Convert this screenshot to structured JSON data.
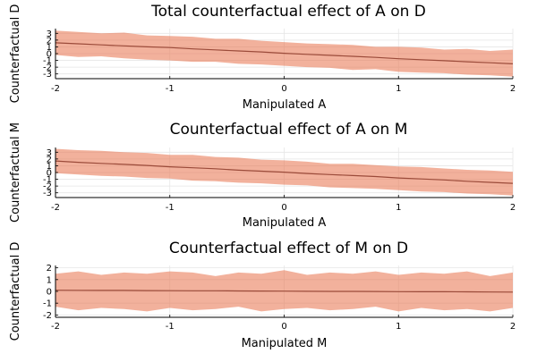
{
  "chart_data": [
    {
      "type": "area",
      "title": "Total counterfactual effect of A on D",
      "xlabel": "Manipulated A",
      "ylabel": "Counterfactual D",
      "xlim": [
        -2,
        2
      ],
      "ylim": [
        -3.7,
        3.7
      ],
      "xticks": [
        "-2",
        "-1",
        "0",
        "1",
        "2"
      ],
      "yticks": [
        "3",
        "2",
        "1",
        "0",
        "-1",
        "-2",
        "-3"
      ],
      "grid": true,
      "legend": "none",
      "band_color": "#e8714a",
      "band_opacity": 0.55,
      "line_color": "#9b4b3a",
      "x": [
        -2,
        -1.8,
        -1.6,
        -1.4,
        -1.2,
        -1,
        -0.8,
        -0.6,
        -0.4,
        -0.2,
        0,
        0.2,
        0.4,
        0.6,
        0.8,
        1,
        1.2,
        1.4,
        1.6,
        1.8,
        2
      ],
      "mean": [
        1.6,
        1.45,
        1.3,
        1.15,
        1.0,
        0.9,
        0.7,
        0.55,
        0.4,
        0.25,
        0.05,
        -0.1,
        -0.25,
        -0.4,
        -0.55,
        -0.75,
        -0.9,
        -1.05,
        -1.2,
        -1.35,
        -1.5
      ],
      "upper": [
        3.4,
        3.2,
        3.0,
        3.1,
        2.7,
        2.6,
        2.5,
        2.2,
        2.2,
        1.9,
        1.7,
        1.5,
        1.4,
        1.3,
        1.0,
        1.0,
        0.9,
        0.6,
        0.7,
        0.4,
        0.6
      ],
      "lower": [
        -0.2,
        -0.5,
        -0.4,
        -0.7,
        -0.9,
        -1.0,
        -1.2,
        -1.2,
        -1.5,
        -1.6,
        -1.8,
        -2.0,
        -2.1,
        -2.4,
        -2.3,
        -2.7,
        -2.8,
        -2.9,
        -3.1,
        -3.2,
        -3.4
      ]
    },
    {
      "type": "area",
      "title": "Counterfactual effect of A on M",
      "xlabel": "Manipulated A",
      "ylabel": "Counterfactual M",
      "xlim": [
        -2,
        2
      ],
      "ylim": [
        -3.7,
        3.7
      ],
      "xticks": [
        "-2",
        "-1",
        "0",
        "1",
        "2"
      ],
      "yticks": [
        "3",
        "2",
        "1",
        "0",
        "-1",
        "-2",
        "-3"
      ],
      "grid": true,
      "legend": "none",
      "band_color": "#e8714a",
      "band_opacity": 0.55,
      "line_color": "#9b4b3a",
      "x": [
        -2,
        -1.8,
        -1.6,
        -1.4,
        -1.2,
        -1,
        -0.8,
        -0.6,
        -0.4,
        -0.2,
        0,
        0.2,
        0.4,
        0.6,
        0.8,
        1,
        1.2,
        1.4,
        1.6,
        1.8,
        2
      ],
      "mean": [
        1.7,
        1.5,
        1.35,
        1.2,
        1.05,
        0.85,
        0.7,
        0.55,
        0.35,
        0.2,
        0.05,
        -0.15,
        -0.3,
        -0.45,
        -0.6,
        -0.8,
        -0.95,
        -1.1,
        -1.3,
        -1.45,
        -1.6
      ],
      "upper": [
        3.5,
        3.3,
        3.2,
        3.0,
        2.9,
        2.6,
        2.6,
        2.3,
        2.2,
        1.9,
        1.8,
        1.6,
        1.3,
        1.3,
        1.1,
        0.9,
        0.8,
        0.6,
        0.4,
        0.3,
        0.1
      ],
      "lower": [
        -0.1,
        -0.3,
        -0.5,
        -0.6,
        -0.8,
        -0.9,
        -1.2,
        -1.3,
        -1.5,
        -1.6,
        -1.8,
        -1.9,
        -2.2,
        -2.3,
        -2.4,
        -2.6,
        -2.8,
        -2.9,
        -3.1,
        -3.2,
        -3.4
      ]
    },
    {
      "type": "area",
      "title": "Counterfactual effect of M on D",
      "xlabel": "Manipulated M",
      "ylabel": "Counterfactual D",
      "xlim": [
        -2,
        2
      ],
      "ylim": [
        -2.2,
        2.2
      ],
      "xticks": [
        "-2",
        "-1",
        "0",
        "1",
        "2"
      ],
      "yticks": [
        "2",
        "1",
        "0",
        "-1",
        "-2"
      ],
      "grid": true,
      "legend": "none",
      "band_color": "#e8714a",
      "band_opacity": 0.55,
      "line_color": "#9b4b3a",
      "x": [
        -2,
        -1.8,
        -1.6,
        -1.4,
        -1.2,
        -1,
        -0.8,
        -0.6,
        -0.4,
        -0.2,
        0,
        0.2,
        0.4,
        0.6,
        0.8,
        1,
        1.2,
        1.4,
        1.6,
        1.8,
        2
      ],
      "mean": [
        0.1,
        0.09,
        0.08,
        0.08,
        0.07,
        0.06,
        0.05,
        0.05,
        0.04,
        0.03,
        0.02,
        0.01,
        0.0,
        0.0,
        -0.01,
        -0.02,
        -0.03,
        -0.03,
        -0.04,
        -0.05,
        -0.06
      ],
      "upper": [
        1.5,
        1.7,
        1.4,
        1.6,
        1.5,
        1.7,
        1.6,
        1.3,
        1.6,
        1.5,
        1.8,
        1.4,
        1.6,
        1.5,
        1.7,
        1.4,
        1.6,
        1.5,
        1.7,
        1.3,
        1.6
      ],
      "lower": [
        -1.3,
        -1.6,
        -1.4,
        -1.5,
        -1.7,
        -1.4,
        -1.6,
        -1.5,
        -1.3,
        -1.7,
        -1.5,
        -1.4,
        -1.6,
        -1.5,
        -1.3,
        -1.7,
        -1.4,
        -1.6,
        -1.5,
        -1.7,
        -1.4
      ]
    }
  ]
}
